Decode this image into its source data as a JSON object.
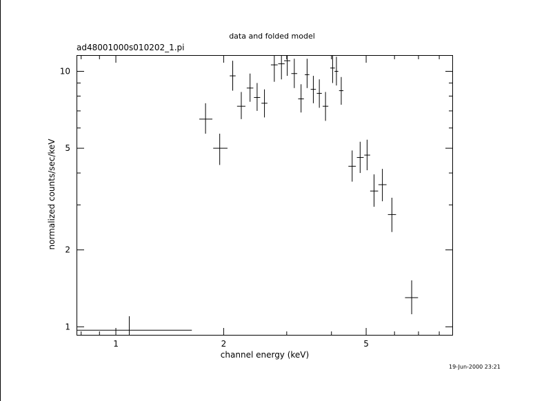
{
  "chart_data": {
    "type": "scatter",
    "title": "data and folded model",
    "subtitle": "ad48001000s010202_1.pi",
    "xlabel": "channel energy (keV)",
    "ylabel": "normalized counts/sec/keV",
    "x_scale": "log",
    "y_scale": "log",
    "xlim": [
      0.78,
      8.7
    ],
    "ylim": [
      0.93,
      11.5
    ],
    "x_tick_labels": [
      "1",
      "2",
      "5"
    ],
    "y_tick_labels": [
      "1",
      "2",
      "5",
      "10"
    ],
    "grid": false,
    "points": [
      {
        "x": 1.09,
        "xlo": 0.78,
        "xhi": 1.63,
        "y": 0.97,
        "ylo": 0.92,
        "yhi": 1.1
      },
      {
        "x": 1.78,
        "xlo": 1.71,
        "xhi": 1.86,
        "y": 6.5,
        "ylo": 5.7,
        "yhi": 7.5
      },
      {
        "x": 1.95,
        "xlo": 1.87,
        "xhi": 2.05,
        "y": 5.0,
        "ylo": 4.3,
        "yhi": 5.7
      },
      {
        "x": 2.12,
        "xlo": 2.08,
        "xhi": 2.16,
        "y": 9.6,
        "ylo": 8.4,
        "yhi": 11.0
      },
      {
        "x": 2.24,
        "xlo": 2.18,
        "xhi": 2.3,
        "y": 7.3,
        "ylo": 6.5,
        "yhi": 8.3
      },
      {
        "x": 2.37,
        "xlo": 2.32,
        "xhi": 2.42,
        "y": 8.6,
        "ylo": 7.6,
        "yhi": 9.8
      },
      {
        "x": 2.48,
        "xlo": 2.43,
        "xhi": 2.53,
        "y": 7.9,
        "ylo": 7.0,
        "yhi": 9.0
      },
      {
        "x": 2.6,
        "xlo": 2.55,
        "xhi": 2.65,
        "y": 7.5,
        "ylo": 6.6,
        "yhi": 8.5
      },
      {
        "x": 2.77,
        "xlo": 2.71,
        "xhi": 2.83,
        "y": 10.6,
        "ylo": 9.1,
        "yhi": 12.0
      },
      {
        "x": 2.9,
        "xlo": 2.84,
        "xhi": 2.96,
        "y": 10.7,
        "ylo": 9.3,
        "yhi": 12.0
      },
      {
        "x": 3.01,
        "xlo": 2.95,
        "xhi": 3.07,
        "y": 11.0,
        "ylo": 9.6,
        "yhi": 12.0
      },
      {
        "x": 3.15,
        "xlo": 3.09,
        "xhi": 3.21,
        "y": 9.8,
        "ylo": 8.6,
        "yhi": 11.2
      },
      {
        "x": 3.29,
        "xlo": 3.23,
        "xhi": 3.35,
        "y": 7.8,
        "ylo": 6.9,
        "yhi": 8.9
      },
      {
        "x": 3.42,
        "xlo": 3.37,
        "xhi": 3.47,
        "y": 9.7,
        "ylo": 8.6,
        "yhi": 11.2
      },
      {
        "x": 3.56,
        "xlo": 3.5,
        "xhi": 3.62,
        "y": 8.5,
        "ylo": 7.5,
        "yhi": 9.6
      },
      {
        "x": 3.7,
        "xlo": 3.64,
        "xhi": 3.76,
        "y": 8.2,
        "ylo": 7.2,
        "yhi": 9.3
      },
      {
        "x": 3.85,
        "xlo": 3.78,
        "xhi": 3.92,
        "y": 7.3,
        "ylo": 6.4,
        "yhi": 8.3
      },
      {
        "x": 4.03,
        "xlo": 3.97,
        "xhi": 4.09,
        "y": 10.3,
        "ylo": 9.0,
        "yhi": 11.8
      },
      {
        "x": 4.13,
        "xlo": 4.08,
        "xhi": 4.18,
        "y": 10.0,
        "ylo": 8.8,
        "yhi": 11.4
      },
      {
        "x": 4.26,
        "xlo": 4.2,
        "xhi": 4.32,
        "y": 8.4,
        "ylo": 7.4,
        "yhi": 9.5
      },
      {
        "x": 4.57,
        "xlo": 4.46,
        "xhi": 4.68,
        "y": 4.25,
        "ylo": 3.7,
        "yhi": 4.9
      },
      {
        "x": 4.81,
        "xlo": 4.71,
        "xhi": 4.92,
        "y": 4.6,
        "ylo": 4.0,
        "yhi": 5.3
      },
      {
        "x": 5.03,
        "xlo": 4.94,
        "xhi": 5.13,
        "y": 4.7,
        "ylo": 4.1,
        "yhi": 5.4
      },
      {
        "x": 5.26,
        "xlo": 5.13,
        "xhi": 5.4,
        "y": 3.4,
        "ylo": 2.95,
        "yhi": 3.95
      },
      {
        "x": 5.55,
        "xlo": 5.41,
        "xhi": 5.7,
        "y": 3.6,
        "ylo": 3.1,
        "yhi": 4.15
      },
      {
        "x": 5.9,
        "xlo": 5.75,
        "xhi": 6.06,
        "y": 2.75,
        "ylo": 2.35,
        "yhi": 3.2
      },
      {
        "x": 6.7,
        "xlo": 6.42,
        "xhi": 6.98,
        "y": 1.3,
        "ylo": 1.12,
        "yhi": 1.52
      }
    ]
  },
  "timestamp": "19-Jun-2000 23:21"
}
